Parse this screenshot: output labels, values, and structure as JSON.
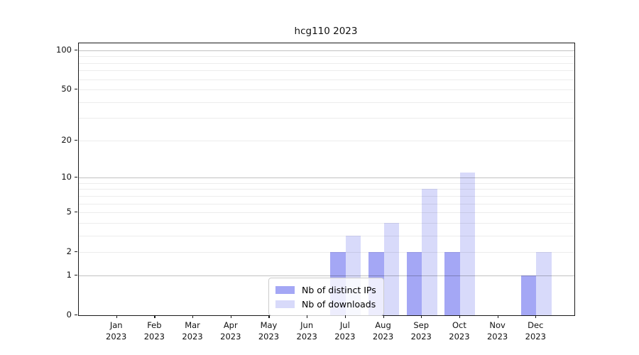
{
  "title": "hcg110 2023",
  "legend": [
    {
      "label": "Nb of distinct IPs",
      "color": "#a4a7f5"
    },
    {
      "label": "Nb of downloads",
      "color": "#d8dafa"
    }
  ],
  "chart_data": {
    "type": "bar",
    "title": "hcg110 2023",
    "categories": [
      "Jan 2023",
      "Feb 2023",
      "Mar 2023",
      "Apr 2023",
      "May 2023",
      "Jun 2023",
      "Jul 2023",
      "Aug 2023",
      "Sep 2023",
      "Oct 2023",
      "Nov 2023",
      "Dec 2023"
    ],
    "series": [
      {
        "name": "Nb of distinct IPs",
        "color": "#a4a7f5",
        "values": [
          0,
          0,
          0,
          0,
          0,
          0,
          2,
          2,
          2,
          2,
          0,
          1
        ]
      },
      {
        "name": "Nb of downloads",
        "color": "#d8dafa",
        "values": [
          0,
          0,
          0,
          0,
          0,
          0,
          3,
          4,
          8,
          11,
          0,
          2
        ]
      }
    ],
    "xlabel": "",
    "ylabel": "",
    "yscale": "log1p",
    "ylim": [
      0,
      113
    ],
    "yticks": [
      0,
      1,
      2,
      5,
      10,
      20,
      50,
      100
    ],
    "grid_major_values": [
      1,
      10,
      100
    ],
    "grid_minor_values": [
      2,
      3,
      4,
      5,
      6,
      7,
      8,
      9,
      20,
      30,
      40,
      50,
      60,
      70,
      80,
      90
    ],
    "legend_position": "lower center"
  }
}
